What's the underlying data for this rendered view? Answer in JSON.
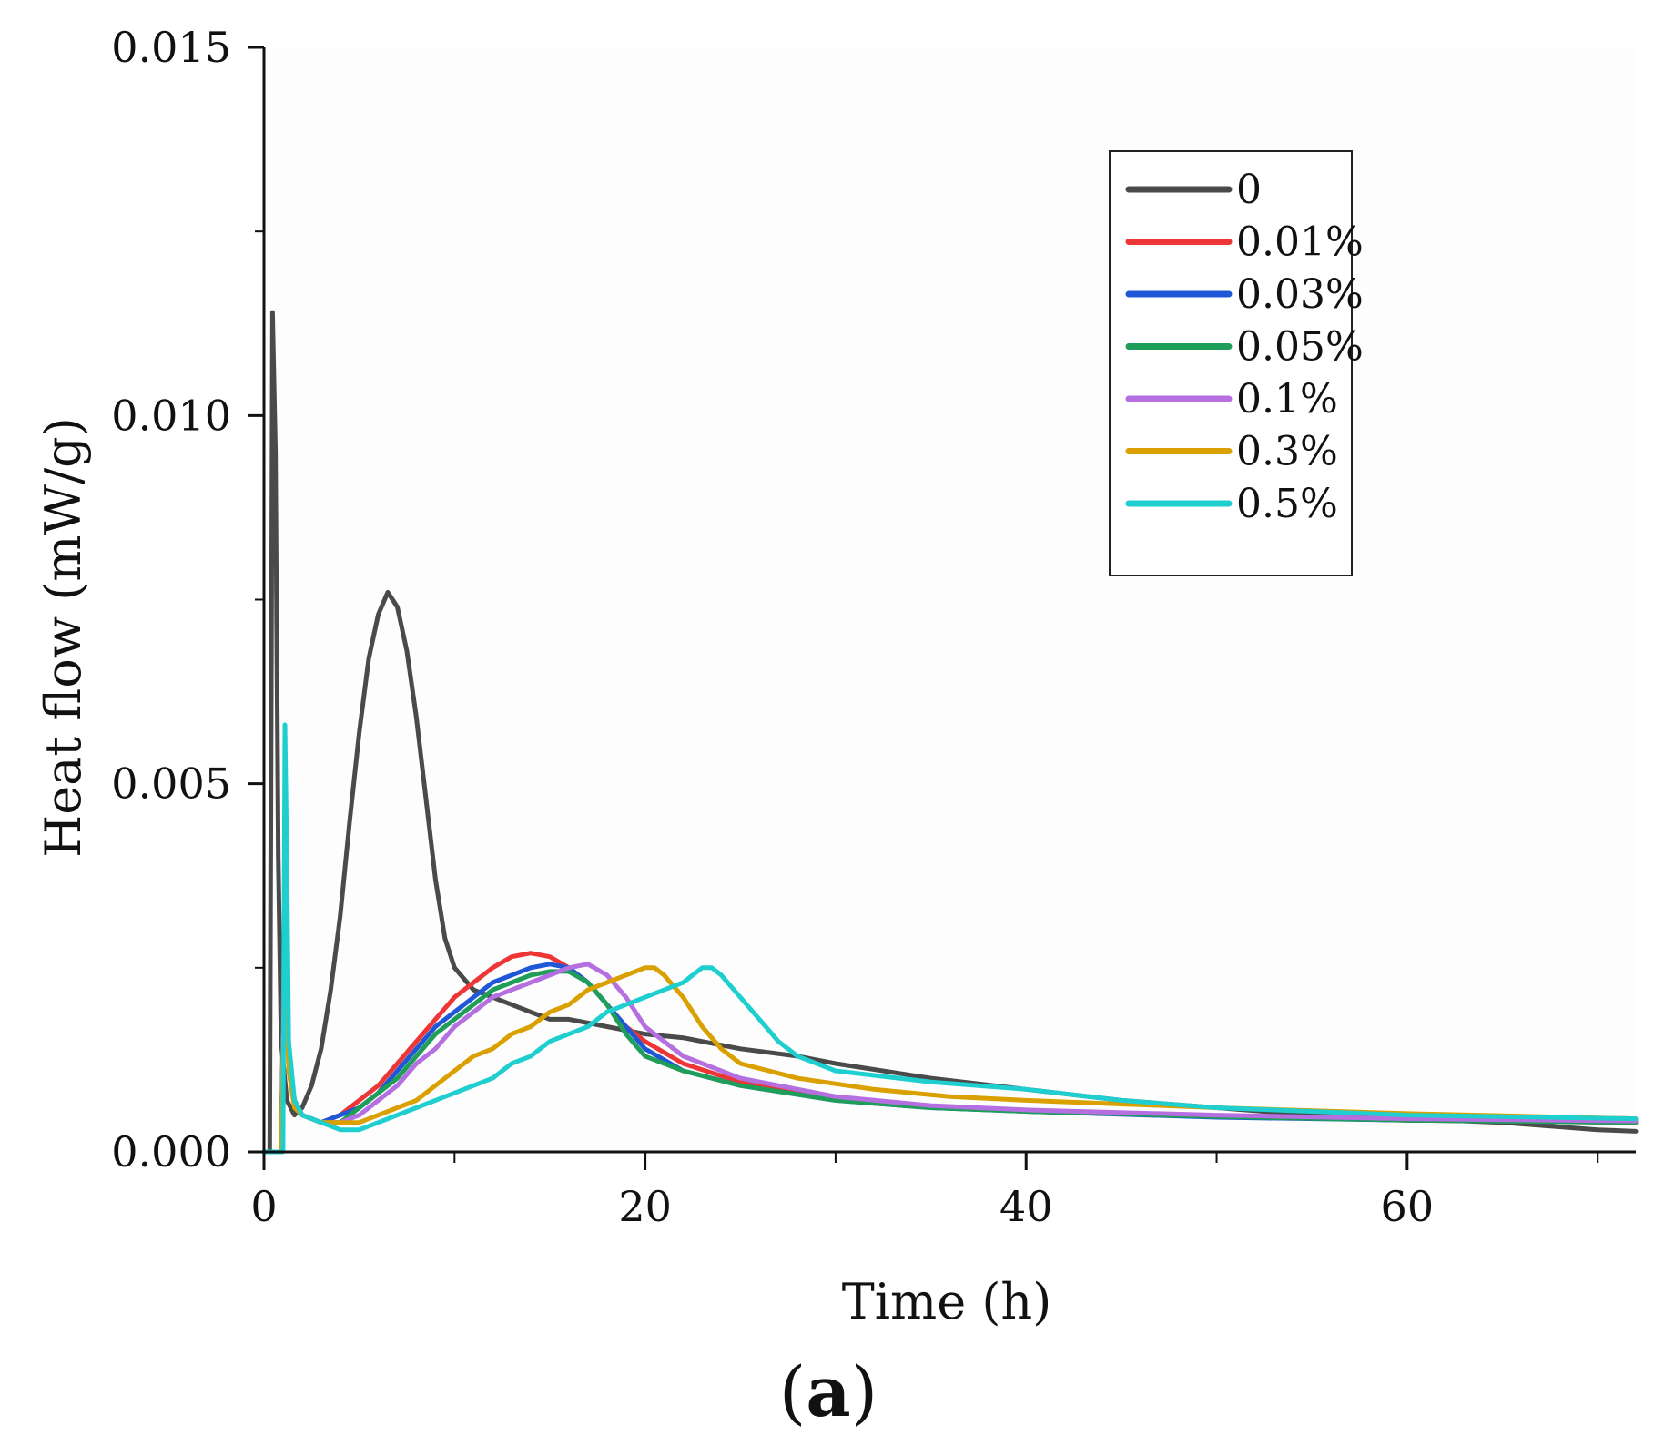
{
  "chart_data": {
    "type": "line",
    "title": "",
    "xlabel": "Time (h)",
    "ylabel": "Heat flow (mW/g)",
    "xlim": [
      0,
      72
    ],
    "ylim": [
      0,
      0.015
    ],
    "xticks": [
      0,
      20,
      40,
      60
    ],
    "xtick_labels": [
      "0",
      "20",
      "40",
      "60"
    ],
    "yticks": [
      0,
      0.005,
      0.01,
      0.015
    ],
    "ytick_labels": [
      "0.000",
      "0.005",
      "0.010",
      "0.015"
    ],
    "legend_position": "top-right",
    "series": [
      {
        "name": "0",
        "color": "#4a4a4a",
        "points": [
          [
            0,
            0
          ],
          [
            0.3,
            0
          ],
          [
            0.45,
            0.0114
          ],
          [
            0.6,
            0.0095
          ],
          [
            0.75,
            0.004
          ],
          [
            0.9,
            0.0015
          ],
          [
            1.2,
            0.0007
          ],
          [
            1.6,
            0.0005
          ],
          [
            2,
            0.0006
          ],
          [
            2.5,
            0.0009
          ],
          [
            3,
            0.0014
          ],
          [
            3.5,
            0.0022
          ],
          [
            4,
            0.0032
          ],
          [
            4.5,
            0.0045
          ],
          [
            5,
            0.0057
          ],
          [
            5.5,
            0.0067
          ],
          [
            6,
            0.0073
          ],
          [
            6.5,
            0.0076
          ],
          [
            7,
            0.0074
          ],
          [
            7.5,
            0.0068
          ],
          [
            8,
            0.0059
          ],
          [
            8.5,
            0.0048
          ],
          [
            9,
            0.0037
          ],
          [
            9.5,
            0.0029
          ],
          [
            10,
            0.0025
          ],
          [
            11,
            0.0022
          ],
          [
            12,
            0.0021
          ],
          [
            13,
            0.002
          ],
          [
            14,
            0.0019
          ],
          [
            15,
            0.0018
          ],
          [
            16,
            0.0018
          ],
          [
            18,
            0.0017
          ],
          [
            20,
            0.0016
          ],
          [
            22,
            0.00155
          ],
          [
            25,
            0.0014
          ],
          [
            28,
            0.0013
          ],
          [
            30,
            0.0012
          ],
          [
            35,
            0.001
          ],
          [
            40,
            0.00085
          ],
          [
            45,
            0.0007
          ],
          [
            50,
            0.0006
          ],
          [
            55,
            0.0005
          ],
          [
            60,
            0.00045
          ],
          [
            65,
            0.0004
          ],
          [
            70,
            0.0003
          ],
          [
            72,
            0.00028
          ]
        ]
      },
      {
        "name": "0.01%",
        "color": "#ee3636",
        "points": [
          [
            0,
            0
          ],
          [
            0.9,
            0
          ],
          [
            1.1,
            0.0035
          ],
          [
            1.3,
            0.0012
          ],
          [
            1.6,
            0.0007
          ],
          [
            2,
            0.0005
          ],
          [
            3,
            0.0004
          ],
          [
            4,
            0.0005
          ],
          [
            5,
            0.0007
          ],
          [
            6,
            0.0009
          ],
          [
            7,
            0.0012
          ],
          [
            8,
            0.0015
          ],
          [
            9,
            0.0018
          ],
          [
            10,
            0.0021
          ],
          [
            11,
            0.0023
          ],
          [
            12,
            0.0025
          ],
          [
            13,
            0.00265
          ],
          [
            14,
            0.0027
          ],
          [
            15,
            0.00265
          ],
          [
            16,
            0.0025
          ],
          [
            17,
            0.0023
          ],
          [
            18,
            0.002
          ],
          [
            19,
            0.0017
          ],
          [
            20,
            0.0015
          ],
          [
            22,
            0.0012
          ],
          [
            25,
            0.00095
          ],
          [
            30,
            0.00075
          ],
          [
            35,
            0.00062
          ],
          [
            40,
            0.00055
          ],
          [
            50,
            0.00048
          ],
          [
            60,
            0.00043
          ],
          [
            72,
            0.0004
          ]
        ]
      },
      {
        "name": "0.03%",
        "color": "#1f57d6",
        "points": [
          [
            0,
            0
          ],
          [
            0.9,
            0
          ],
          [
            1.1,
            0.003
          ],
          [
            1.3,
            0.0012
          ],
          [
            1.6,
            0.0007
          ],
          [
            2,
            0.0005
          ],
          [
            3,
            0.0004
          ],
          [
            4,
            0.0005
          ],
          [
            5,
            0.0006
          ],
          [
            6,
            0.0008
          ],
          [
            7,
            0.0011
          ],
          [
            8,
            0.0014
          ],
          [
            9,
            0.0017
          ],
          [
            10,
            0.0019
          ],
          [
            11,
            0.0021
          ],
          [
            12,
            0.0023
          ],
          [
            13,
            0.0024
          ],
          [
            14,
            0.0025
          ],
          [
            15,
            0.00255
          ],
          [
            16,
            0.0025
          ],
          [
            17,
            0.0023
          ],
          [
            18,
            0.002
          ],
          [
            19,
            0.0017
          ],
          [
            20,
            0.0014
          ],
          [
            22,
            0.0011
          ],
          [
            25,
            0.0009
          ],
          [
            30,
            0.0007
          ],
          [
            35,
            0.0006
          ],
          [
            40,
            0.00055
          ],
          [
            50,
            0.00047
          ],
          [
            60,
            0.00043
          ],
          [
            72,
            0.0004
          ]
        ]
      },
      {
        "name": "0.05%",
        "color": "#1f9e5a",
        "points": [
          [
            0,
            0
          ],
          [
            0.9,
            0
          ],
          [
            1.1,
            0.0028
          ],
          [
            1.3,
            0.0012
          ],
          [
            1.6,
            0.0007
          ],
          [
            2,
            0.0005
          ],
          [
            3,
            0.0004
          ],
          [
            4,
            0.0004
          ],
          [
            5,
            0.0006
          ],
          [
            6,
            0.0008
          ],
          [
            7,
            0.001
          ],
          [
            8,
            0.0013
          ],
          [
            9,
            0.0016
          ],
          [
            10,
            0.0018
          ],
          [
            11,
            0.002
          ],
          [
            12,
            0.0022
          ],
          [
            13,
            0.0023
          ],
          [
            14,
            0.0024
          ],
          [
            15,
            0.00245
          ],
          [
            16,
            0.00245
          ],
          [
            17,
            0.0023
          ],
          [
            18,
            0.002
          ],
          [
            19,
            0.0016
          ],
          [
            20,
            0.0013
          ],
          [
            22,
            0.0011
          ],
          [
            25,
            0.0009
          ],
          [
            30,
            0.0007
          ],
          [
            35,
            0.0006
          ],
          [
            40,
            0.00055
          ],
          [
            50,
            0.00048
          ],
          [
            60,
            0.00043
          ],
          [
            72,
            0.0004
          ]
        ]
      },
      {
        "name": "0.1%",
        "color": "#b56fe0",
        "points": [
          [
            0,
            0
          ],
          [
            0.9,
            0
          ],
          [
            1.1,
            0.0026
          ],
          [
            1.3,
            0.0011
          ],
          [
            1.6,
            0.0007
          ],
          [
            2,
            0.0005
          ],
          [
            3,
            0.0004
          ],
          [
            4,
            0.0004
          ],
          [
            5,
            0.0005
          ],
          [
            6,
            0.0007
          ],
          [
            7,
            0.0009
          ],
          [
            8,
            0.0012
          ],
          [
            9,
            0.0014
          ],
          [
            10,
            0.0017
          ],
          [
            11,
            0.0019
          ],
          [
            12,
            0.0021
          ],
          [
            13,
            0.0022
          ],
          [
            14,
            0.0023
          ],
          [
            15,
            0.0024
          ],
          [
            16,
            0.0025
          ],
          [
            17,
            0.00255
          ],
          [
            18,
            0.0024
          ],
          [
            19,
            0.0021
          ],
          [
            20,
            0.0017
          ],
          [
            22,
            0.0013
          ],
          [
            25,
            0.001
          ],
          [
            30,
            0.00075
          ],
          [
            35,
            0.00063
          ],
          [
            40,
            0.00057
          ],
          [
            50,
            0.0005
          ],
          [
            60,
            0.00045
          ],
          [
            72,
            0.00042
          ]
        ]
      },
      {
        "name": "0.3%",
        "color": "#d9a000",
        "points": [
          [
            0,
            0
          ],
          [
            0.9,
            0
          ],
          [
            1.1,
            0.0025
          ],
          [
            1.3,
            0.0011
          ],
          [
            1.6,
            0.0006
          ],
          [
            2,
            0.0005
          ],
          [
            3,
            0.0004
          ],
          [
            4,
            0.0004
          ],
          [
            5,
            0.0004
          ],
          [
            6,
            0.0005
          ],
          [
            7,
            0.0006
          ],
          [
            8,
            0.0007
          ],
          [
            9,
            0.0009
          ],
          [
            10,
            0.0011
          ],
          [
            11,
            0.0013
          ],
          [
            12,
            0.0014
          ],
          [
            13,
            0.0016
          ],
          [
            14,
            0.0017
          ],
          [
            15,
            0.0019
          ],
          [
            16,
            0.002
          ],
          [
            17,
            0.0022
          ],
          [
            18,
            0.0023
          ],
          [
            19,
            0.0024
          ],
          [
            20,
            0.0025
          ],
          [
            20.5,
            0.0025
          ],
          [
            21,
            0.0024
          ],
          [
            22,
            0.0021
          ],
          [
            23,
            0.0017
          ],
          [
            24,
            0.0014
          ],
          [
            25,
            0.0012
          ],
          [
            28,
            0.001
          ],
          [
            32,
            0.00085
          ],
          [
            36,
            0.00075
          ],
          [
            40,
            0.0007
          ],
          [
            50,
            0.0006
          ],
          [
            60,
            0.00052
          ],
          [
            72,
            0.00045
          ]
        ]
      },
      {
        "name": "0.5%",
        "color": "#1fcfcf",
        "points": [
          [
            0,
            0
          ],
          [
            1,
            0
          ],
          [
            1.1,
            0.0058
          ],
          [
            1.2,
            0.004
          ],
          [
            1.3,
            0.0015
          ],
          [
            1.6,
            0.0007
          ],
          [
            2,
            0.0005
          ],
          [
            3,
            0.0004
          ],
          [
            4,
            0.0003
          ],
          [
            5,
            0.0003
          ],
          [
            6,
            0.0004
          ],
          [
            7,
            0.0005
          ],
          [
            8,
            0.0006
          ],
          [
            9,
            0.0007
          ],
          [
            10,
            0.0008
          ],
          [
            11,
            0.0009
          ],
          [
            12,
            0.001
          ],
          [
            13,
            0.0012
          ],
          [
            14,
            0.0013
          ],
          [
            15,
            0.0015
          ],
          [
            16,
            0.0016
          ],
          [
            17,
            0.0017
          ],
          [
            18,
            0.0019
          ],
          [
            19,
            0.002
          ],
          [
            20,
            0.0021
          ],
          [
            21,
            0.0022
          ],
          [
            22,
            0.0023
          ],
          [
            23,
            0.0025
          ],
          [
            23.5,
            0.0025
          ],
          [
            24,
            0.0024
          ],
          [
            25,
            0.0021
          ],
          [
            26,
            0.0018
          ],
          [
            27,
            0.0015
          ],
          [
            28,
            0.0013
          ],
          [
            30,
            0.0011
          ],
          [
            35,
            0.00095
          ],
          [
            40,
            0.00085
          ],
          [
            45,
            0.0007
          ],
          [
            50,
            0.0006
          ],
          [
            60,
            0.0005
          ],
          [
            72,
            0.00045
          ]
        ]
      }
    ]
  },
  "panel_label": {
    "open": "(",
    "letter": "a",
    "close": ")"
  }
}
